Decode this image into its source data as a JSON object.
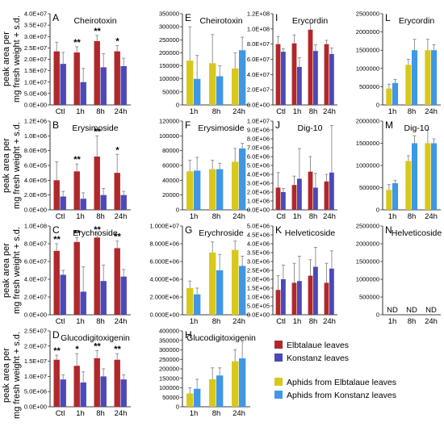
{
  "y_axis_label_line1": "peak area per",
  "y_axis_label_line2": "mg fresh weight + s.d.",
  "colors": {
    "elb_leaves": "#b0282a",
    "kon_leaves": "#4b49b8",
    "aph_elb": "#d8c81a",
    "aph_kon": "#3f97e6"
  },
  "legend": [
    {
      "key": "elb_leaves",
      "label": "Elbtalaue leaves"
    },
    {
      "key": "kon_leaves",
      "label": "Konstanz leaves"
    },
    {
      "key": "aph_elb",
      "label": "Aphids from Elbtalaue leaves"
    },
    {
      "key": "aph_kon",
      "label": "Aphids from Konstanz leaves"
    }
  ],
  "chart_data": [
    {
      "letter": "A",
      "title": "Cheirotoxin",
      "type": "bar",
      "categories": [
        "Ctl",
        "1h",
        "8h",
        "24h"
      ],
      "series": [
        {
          "key": "elb_leaves",
          "values": [
            23500000,
            23000000,
            28000000,
            23500000
          ],
          "err": [
            4000000,
            2500000,
            2500000,
            2500000
          ]
        },
        {
          "key": "kon_leaves",
          "values": [
            18000000,
            10000000,
            16500000,
            17000000
          ],
          "err": [
            5000000,
            6000000,
            6000000,
            3500000
          ]
        }
      ],
      "significance": [
        "",
        "**",
        "**",
        "*"
      ],
      "ylim": [
        0,
        40000000
      ],
      "ticks": [
        "0.0E+00",
        "5.0E+06",
        "1.0E+07",
        "1.5E+07",
        "2.0E+07",
        "2.5E+07",
        "3.0E+07",
        "3.5E+07",
        "4.0E+07"
      ]
    },
    {
      "letter": "E",
      "title": "Cheirotoxin",
      "type": "bar",
      "categories": [
        "1h",
        "8h",
        "24h"
      ],
      "series": [
        {
          "key": "aph_elb",
          "values": [
            170000,
            160000,
            140000
          ],
          "err": [
            130000,
            110000,
            60000
          ]
        },
        {
          "key": "aph_kon",
          "values": [
            100000,
            110000,
            210000
          ],
          "err": [
            90000,
            40000,
            50000
          ]
        }
      ],
      "ylim": [
        0,
        350000
      ],
      "ticks": [
        "0",
        "50000",
        "100000",
        "150000",
        "200000",
        "250000",
        "300000",
        "350000"
      ]
    },
    {
      "letter": "I",
      "title": "Erycordin",
      "type": "bar",
      "categories": [
        "Ctl",
        "1h",
        "8h",
        "24h"
      ],
      "series": [
        {
          "key": "elb_leaves",
          "values": [
            80000000,
            81000000,
            99000000,
            80000000
          ],
          "err": [
            10000000,
            11000000,
            8000000,
            5000000
          ]
        },
        {
          "key": "kon_leaves",
          "values": [
            70000000,
            50000000,
            71000000,
            67000000
          ],
          "err": [
            4000000,
            12000000,
            8000000,
            8000000
          ]
        }
      ],
      "ylim": [
        0,
        120000000
      ],
      "ticks": [
        "0.0E+00",
        "2.0E+07",
        "4.0E+07",
        "6.0E+07",
        "8.0E+07",
        "1.0E+08",
        "1.2E+08"
      ]
    },
    {
      "letter": "L",
      "title": "Erycordin",
      "type": "bar",
      "categories": [
        "1h",
        "8h",
        "24h"
      ],
      "series": [
        {
          "key": "aph_elb",
          "values": [
            450000,
            1100000,
            1500000
          ],
          "err": [
            120000,
            150000,
            300000
          ]
        },
        {
          "key": "aph_kon",
          "values": [
            600000,
            1500000,
            1500000
          ],
          "err": [
            100000,
            300000,
            150000
          ]
        }
      ],
      "ylim": [
        0,
        2500000
      ],
      "ticks": [
        "0",
        "500000",
        "1000000",
        "1500000",
        "2000000",
        "2500000"
      ]
    },
    {
      "letter": "B",
      "title": "Erysimoside",
      "type": "bar",
      "categories": [
        "Ctl",
        "1h",
        "8h",
        "24h"
      ],
      "series": [
        {
          "key": "elb_leaves",
          "values": [
            400000,
            520000,
            720000,
            500000
          ],
          "err": [
            250000,
            100000,
            280000,
            250000
          ]
        },
        {
          "key": "kon_leaves",
          "values": [
            180000,
            150000,
            200000,
            200000
          ],
          "err": [
            70000,
            80000,
            90000,
            50000
          ]
        }
      ],
      "significance": [
        "",
        "**",
        "**",
        "*"
      ],
      "ylim": [
        0,
        1200000
      ],
      "ticks": [
        "0.0E+00",
        "2.0E+05",
        "4.0E+05",
        "6.0E+05",
        "8.0E+05",
        "1.0E+06",
        "1.2E+06"
      ]
    },
    {
      "letter": "F",
      "title": "Erysimoside",
      "type": "bar",
      "categories": [
        "1h",
        "8h",
        "24h"
      ],
      "series": [
        {
          "key": "aph_elb",
          "values": [
            52000,
            55000,
            65000
          ],
          "err": [
            15000,
            12000,
            18000
          ]
        },
        {
          "key": "aph_kon",
          "values": [
            53000,
            55000,
            83000
          ],
          "err": [
            18000,
            8000,
            7000
          ]
        }
      ],
      "ylim": [
        0,
        120000
      ],
      "ticks": [
        "0",
        "20000",
        "40000",
        "60000",
        "80000",
        "100000",
        "120000"
      ]
    },
    {
      "letter": "J",
      "title": "Dig-10",
      "type": "bar",
      "categories": [
        "Ctl",
        "1h",
        "8h",
        "24h"
      ],
      "series": [
        {
          "key": "elb_leaves",
          "values": [
            2500000,
            2800000,
            4300000,
            3200000
          ],
          "err": [
            1700000,
            1000000,
            1700000,
            800000
          ]
        },
        {
          "key": "kon_leaves",
          "values": [
            2000000,
            3500000,
            2500000,
            4200000
          ],
          "err": [
            400000,
            3400000,
            1600000,
            5300000
          ]
        }
      ],
      "ylim": [
        0,
        10000000
      ],
      "ticks": [
        "0.0E+00",
        "1.0E+06",
        "2.0E+06",
        "3.0E+06",
        "4.0E+06",
        "5.0E+06",
        "6.0E+06",
        "7.0E+06",
        "8.0E+06",
        "9.0E+06",
        "1.0E+07"
      ]
    },
    {
      "letter": "M",
      "title": "Dig-10",
      "type": "bar",
      "categories": [
        "1h",
        "8h",
        "24h"
      ],
      "series": [
        {
          "key": "aph_elb",
          "values": [
            450000,
            1100000,
            1500000
          ],
          "err": [
            120000,
            120000,
            300000
          ]
        },
        {
          "key": "aph_kon",
          "values": [
            600000,
            1500000,
            1500000
          ],
          "err": [
            60000,
            170000,
            100000
          ]
        }
      ],
      "ylim": [
        0,
        2000000
      ],
      "ticks": [
        "0",
        "500000",
        "1000000",
        "1500000",
        "2000000"
      ]
    },
    {
      "letter": "C",
      "title": "Erychroside",
      "type": "bar",
      "categories": [
        "Ctl",
        "1h",
        "8h",
        "24h"
      ],
      "series": [
        {
          "key": "elb_leaves",
          "values": [
            72000000,
            82000000,
            87000000,
            75000000
          ],
          "err": [
            8000000,
            5000000,
            5000000,
            8000000
          ]
        },
        {
          "key": "kon_leaves",
          "values": [
            45000000,
            26000000,
            38000000,
            43000000
          ],
          "err": [
            5000000,
            28000000,
            18000000,
            8000000
          ]
        }
      ],
      "significance": [
        "**",
        "**",
        "**",
        "**"
      ],
      "ylim": [
        0,
        100000000
      ],
      "ticks": [
        "0.0E+00",
        "2.0E+07",
        "4.0E+07",
        "6.0E+07",
        "8.0E+07",
        "1.0E+08"
      ]
    },
    {
      "letter": "G",
      "title": "Erychroside",
      "type": "bar",
      "categories": [
        "1h",
        "8h",
        "24h"
      ],
      "series": [
        {
          "key": "aph_elb",
          "values": [
            3000000,
            7000000,
            7300000
          ],
          "err": [
            800000,
            1200000,
            1000000
          ]
        },
        {
          "key": "aph_kon",
          "values": [
            2300000,
            5000000,
            5500000
          ],
          "err": [
            700000,
            1800000,
            1100000
          ]
        }
      ],
      "ylim": [
        0,
        10000000
      ],
      "ticks": [
        "0.000E+00",
        "2.000E+06",
        "4.000E+06",
        "6.000E+06",
        "8.000E+06",
        "1.000E+07"
      ]
    },
    {
      "letter": "K",
      "title": "Helveticoside",
      "type": "bar",
      "categories": [
        "Ctl",
        "1h",
        "8h",
        "24h"
      ],
      "series": [
        {
          "key": "elb_leaves",
          "values": [
            1400000,
            1800000,
            2200000,
            1800000
          ],
          "err": [
            800000,
            1100000,
            900000,
            1100000
          ]
        },
        {
          "key": "kon_leaves",
          "values": [
            2000000,
            1900000,
            2700000,
            2600000
          ],
          "err": [
            800000,
            1400000,
            1100000,
            1000000
          ]
        }
      ],
      "ylim": [
        0,
        5000000
      ],
      "ticks": [
        "0.0E+00",
        "5.0E+05",
        "1.0E+06",
        "1.5E+06",
        "2.0E+06",
        "2.5E+06",
        "3.0E+06",
        "3.5E+06",
        "4.0E+06",
        "4.5E+06",
        "5.0E+06"
      ]
    },
    {
      "letter": "N",
      "title": "Helveticoside",
      "type": "bar",
      "categories": [
        "1h",
        "8h",
        "24h"
      ],
      "series": [
        {
          "key": "aph_elb",
          "values": [
            0,
            0,
            0
          ],
          "err": [
            0,
            0,
            0
          ]
        },
        {
          "key": "aph_kon",
          "values": [
            0,
            0,
            0
          ],
          "err": [
            0,
            0,
            0
          ]
        }
      ],
      "bar_labels": [
        "ND",
        "ND",
        "ND"
      ],
      "ylim": [
        0,
        2500000
      ],
      "ticks": [
        "0",
        "500000",
        "1000000",
        "1500000",
        "2000000",
        "2500000"
      ]
    },
    {
      "letter": "D",
      "title": "Glucodigitoxigenin",
      "type": "bar",
      "categories": [
        "Ctl",
        "1h",
        "8h",
        "24h"
      ],
      "series": [
        {
          "key": "elb_leaves",
          "values": [
            15500000,
            13500000,
            16000000,
            15500000
          ],
          "err": [
            1500000,
            4000000,
            2500000,
            2000000
          ]
        },
        {
          "key": "kon_leaves",
          "values": [
            9000000,
            8000000,
            10000000,
            9000000
          ],
          "err": [
            1500000,
            3500000,
            2500000,
            1500000
          ]
        }
      ],
      "significance": [
        "**",
        "*",
        "**",
        "**"
      ],
      "ylim": [
        0,
        25000000
      ],
      "ticks": [
        "0.0E+00",
        "5.0E+06",
        "1.0E+07",
        "1.5E+07",
        "2.0E+07",
        "2.5E+07"
      ]
    },
    {
      "letter": "H",
      "title": "Glucodigitoxigenin",
      "type": "bar",
      "categories": [
        "1h",
        "8h",
        "24h"
      ],
      "series": [
        {
          "key": "aph_elb",
          "values": [
            70000,
            145000,
            240000
          ],
          "err": [
            30000,
            60000,
            60000
          ]
        },
        {
          "key": "aph_kon",
          "values": [
            95000,
            165000,
            255000
          ],
          "err": [
            50000,
            40000,
            90000
          ]
        }
      ],
      "ylim": [
        0,
        400000
      ],
      "ticks": [
        "0",
        "50000",
        "100000",
        "150000",
        "200000",
        "250000",
        "300000",
        "350000",
        "400000"
      ]
    }
  ]
}
